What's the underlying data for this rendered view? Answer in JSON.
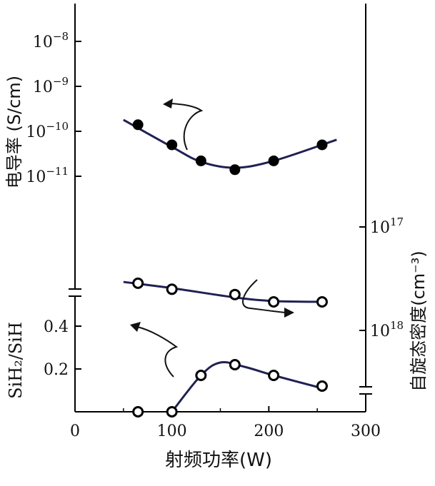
{
  "chart_data": {
    "type": "scatter",
    "xlabel": "射频功率(W)",
    "x_ticks": [
      "0",
      "100",
      "200",
      "300"
    ],
    "xlim": [
      0,
      300
    ],
    "panels": [
      {
        "id": "conductivity",
        "ylabel": "电导率 (S/cm)",
        "scale": "log",
        "side": "left",
        "y_tick_labels": [
          {
            "base": "10",
            "exp": "−8"
          },
          {
            "base": "10",
            "exp": "−9"
          },
          {
            "base": "10",
            "exp": "−10"
          },
          {
            "base": "10",
            "exp": "−11"
          }
        ],
        "series": [
          {
            "marker": "filled-circle",
            "x": [
              65,
              100,
              130,
              165,
              205,
              255
            ],
            "y": [
              1.4e-10,
              5e-11,
              2.2e-11,
              1.4e-11,
              2.2e-11,
              5e-11
            ]
          }
        ]
      },
      {
        "id": "spin-density",
        "ylabel": "自旋态密度(cm⁻³)",
        "scale": "log-inverted",
        "side": "right",
        "y_tick_labels": [
          {
            "base": "10",
            "exp": "17"
          },
          {
            "base": "10",
            "exp": "18"
          }
        ],
        "series": [
          {
            "marker": "open-circle",
            "x": [
              65,
              100,
              165,
              205,
              255
            ],
            "y": [
              3.5e+17,
              4e+17,
              4.5e+17,
              5.3e+17,
              5.3e+17
            ]
          }
        ]
      },
      {
        "id": "sih2-ratio",
        "ylabel": "SiH₂/SiH",
        "scale": "linear",
        "side": "left",
        "ylim": [
          0,
          0.55
        ],
        "y_tick_labels": [
          {
            "base": "0.4",
            "exp": ""
          },
          {
            "base": "0.2",
            "exp": ""
          }
        ],
        "series": [
          {
            "marker": "open-circle",
            "x": [
              65,
              100,
              130,
              165,
              205,
              255
            ],
            "y": [
              0.0,
              0.0,
              0.17,
              0.22,
              0.17,
              0.12
            ]
          }
        ]
      }
    ]
  },
  "colors": {
    "curve": "#1f2153",
    "marker": "#000000",
    "axis": "#000000"
  }
}
